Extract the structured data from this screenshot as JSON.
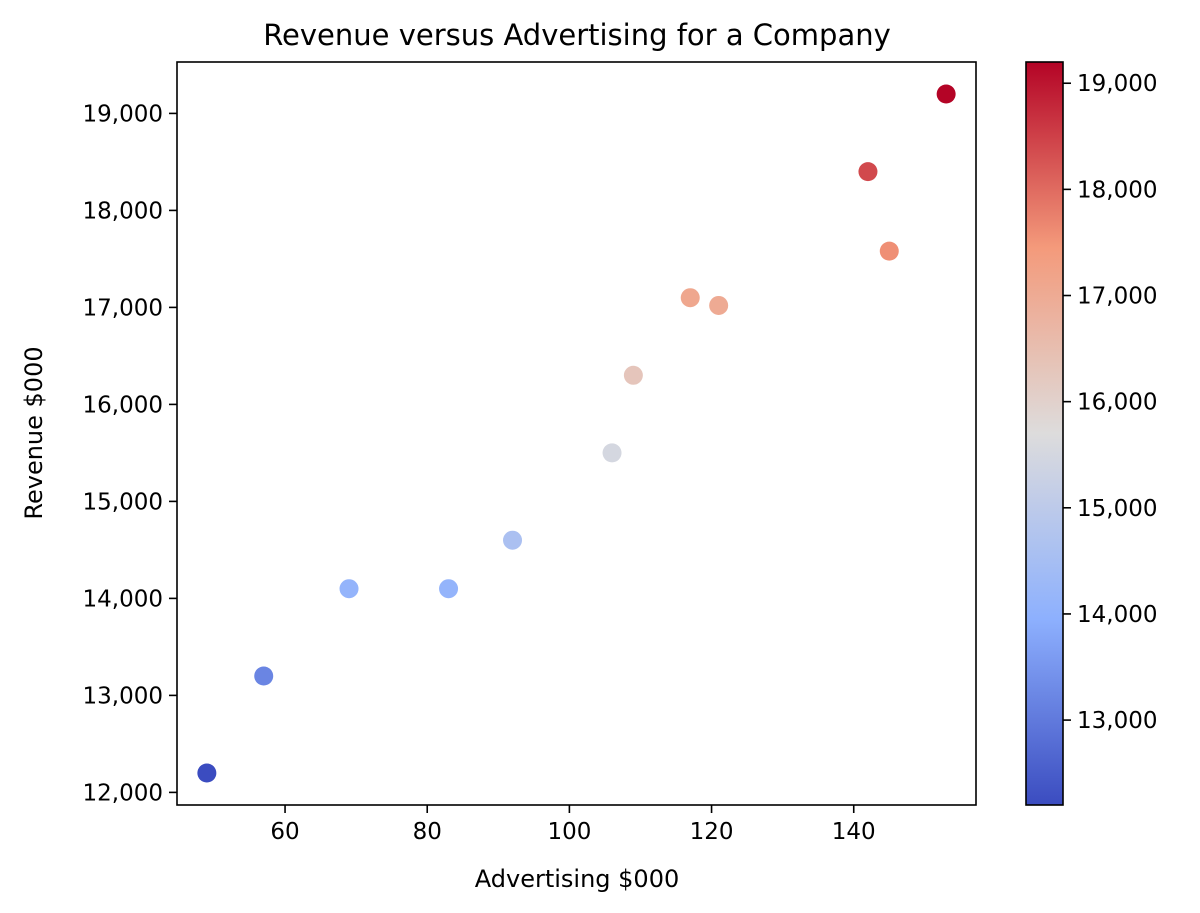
{
  "chart_data": {
    "type": "scatter",
    "title": "Revenue versus Advertising for a Company",
    "xlabel": "Advertising $000",
    "ylabel": "Revenue $000",
    "xlim": [
      44.8,
      157.2
    ],
    "ylim": [
      11870,
      19530
    ],
    "xticks": [
      60,
      80,
      100,
      120,
      140
    ],
    "xtick_labels": [
      "60",
      "80",
      "100",
      "120",
      "140"
    ],
    "yticks": [
      12000,
      13000,
      14000,
      15000,
      16000,
      17000,
      18000,
      19000
    ],
    "ytick_labels": [
      "12,000",
      "13,000",
      "14,000",
      "15,000",
      "16,000",
      "17,000",
      "18,000",
      "19,000"
    ],
    "colorbar": {
      "colormap": "coolwarm",
      "range": [
        12200,
        19200
      ],
      "ticks": [
        13000,
        14000,
        15000,
        16000,
        17000,
        18000,
        19000
      ],
      "tick_labels": [
        "13,000",
        "14,000",
        "15,000",
        "16,000",
        "17,000",
        "18,000",
        "19,000"
      ]
    },
    "grid": false,
    "points": [
      {
        "x": 49,
        "y": 12200
      },
      {
        "x": 57,
        "y": 13200
      },
      {
        "x": 69,
        "y": 14100
      },
      {
        "x": 83,
        "y": 14100
      },
      {
        "x": 92,
        "y": 14600
      },
      {
        "x": 106,
        "y": 15500
      },
      {
        "x": 109,
        "y": 16300
      },
      {
        "x": 117,
        "y": 17100
      },
      {
        "x": 121,
        "y": 17020
      },
      {
        "x": 142,
        "y": 18400
      },
      {
        "x": 145,
        "y": 17580
      },
      {
        "x": 153,
        "y": 19200
      }
    ]
  }
}
